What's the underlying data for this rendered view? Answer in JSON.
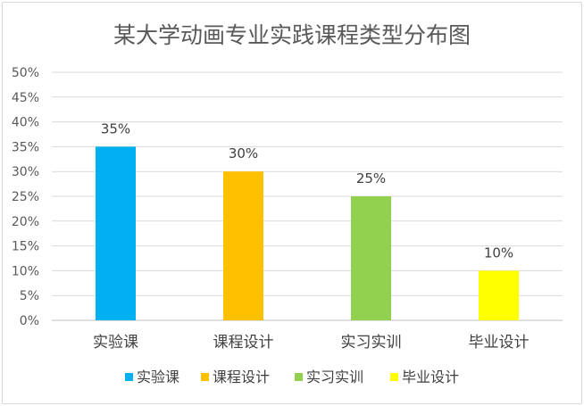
{
  "chart_data": {
    "type": "bar",
    "title": "某大学动画专业实践课程类型分布图",
    "categories": [
      "实验课",
      "课程设计",
      "实习实训",
      "毕业设计"
    ],
    "values": [
      35,
      30,
      25,
      10
    ],
    "value_labels": [
      "35%",
      "30%",
      "25%",
      "10%"
    ],
    "colors": [
      "#00b0f0",
      "#ffc000",
      "#92d050",
      "#ffff00"
    ],
    "ylim": [
      0,
      50
    ],
    "yticks": [
      0,
      5,
      10,
      15,
      20,
      25,
      30,
      35,
      40,
      45,
      50
    ],
    "ytick_labels": [
      "0%",
      "5%",
      "10%",
      "15%",
      "20%",
      "25%",
      "30%",
      "35%",
      "40%",
      "45%",
      "50%"
    ],
    "grid": true,
    "legend": {
      "placement": "bottom",
      "entries": [
        "实验课",
        "课程设计",
        "实习实训",
        "毕业设计"
      ]
    }
  }
}
